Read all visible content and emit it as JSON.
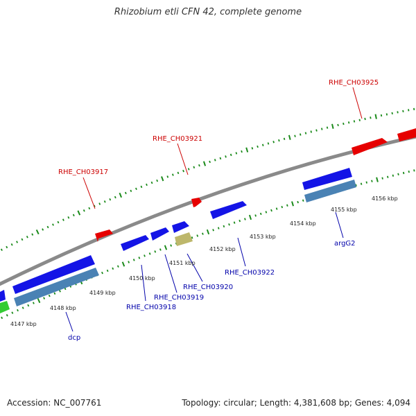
{
  "title": "Rhizobium etli CFN 42, complete genome",
  "footer": {
    "accession": "Accession: NC_007761",
    "stats": "Topology: circular; Length: 4,381,608 bp; Genes: 4,094"
  },
  "colors": {
    "backbone": "#8a8a8a",
    "tick": "#1a8a1a",
    "forward_label": "#cc0000",
    "reverse_label": "#0000aa",
    "red_gene": "#e60000",
    "blue_gene": "#1414e6",
    "steelblue_gene": "#4a82b4",
    "green_gene": "#33cc33",
    "khaki_gene": "#bdb76b"
  },
  "tick_labels": [
    "4147 kbp",
    "4148 kbp",
    "4149 kbp",
    "4150 kbp",
    "4151 kbp",
    "4152 kbp",
    "4153 kbp",
    "4154 kbp",
    "4155 kbp",
    "4156 kbp"
  ],
  "gene_labels": {
    "forward": [
      "RHE_CH03917",
      "RHE_CH03921",
      "RHE_CH03925"
    ],
    "reverse": [
      "dcp",
      "RHE_CH03918",
      "RHE_CH03919",
      "RHE_CH03920",
      "RHE_CH03922",
      "argG2"
    ]
  }
}
